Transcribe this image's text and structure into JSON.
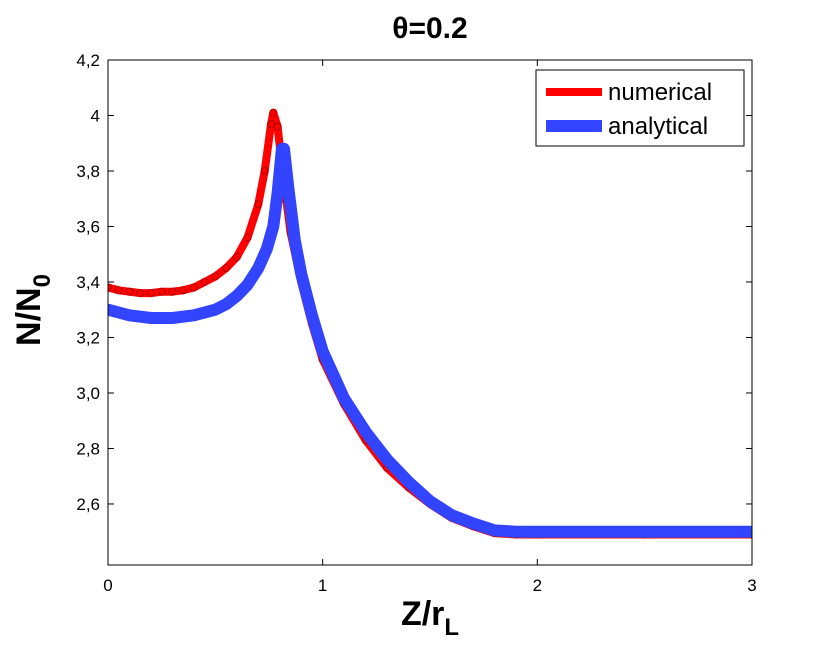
{
  "chart_data": {
    "type": "line",
    "title": "θ=0.2",
    "xlabel": {
      "main": "Z/r",
      "sub": "L"
    },
    "ylabel": {
      "main": "N/N",
      "sub": "0"
    },
    "xlim": [
      0,
      3
    ],
    "ylim": [
      2.38,
      4.2
    ],
    "x_ticks": [
      0,
      1,
      2,
      3
    ],
    "x_tick_labels": [
      "0",
      "1",
      "2",
      "3"
    ],
    "y_ticks": [
      2.6,
      2.8,
      3.0,
      3.2,
      3.4,
      3.6,
      3.8,
      4.0,
      4.2
    ],
    "y_tick_labels": [
      "2,6",
      "2,8",
      "3,0",
      "3,2",
      "3,4",
      "3,6",
      "3,8",
      "4",
      "4,2"
    ],
    "grid": false,
    "legend_position": "top-right",
    "series": [
      {
        "name": "numerical",
        "color": "#ff0000",
        "points": [
          [
            0.0,
            3.38
          ],
          [
            0.05,
            3.37
          ],
          [
            0.1,
            3.365
          ],
          [
            0.15,
            3.36
          ],
          [
            0.2,
            3.36
          ],
          [
            0.25,
            3.365
          ],
          [
            0.3,
            3.365
          ],
          [
            0.35,
            3.37
          ],
          [
            0.4,
            3.38
          ],
          [
            0.45,
            3.4
          ],
          [
            0.5,
            3.42
          ],
          [
            0.55,
            3.45
          ],
          [
            0.6,
            3.49
          ],
          [
            0.65,
            3.56
          ],
          [
            0.7,
            3.68
          ],
          [
            0.73,
            3.8
          ],
          [
            0.76,
            3.97
          ],
          [
            0.77,
            4.01
          ],
          [
            0.79,
            3.96
          ],
          [
            0.81,
            3.82
          ],
          [
            0.83,
            3.7
          ],
          [
            0.85,
            3.58
          ],
          [
            0.9,
            3.4
          ],
          [
            0.95,
            3.25
          ],
          [
            1.0,
            3.12
          ],
          [
            1.1,
            2.96
          ],
          [
            1.2,
            2.83
          ],
          [
            1.3,
            2.73
          ],
          [
            1.4,
            2.66
          ],
          [
            1.5,
            2.6
          ],
          [
            1.6,
            2.55
          ],
          [
            1.7,
            2.52
          ],
          [
            1.8,
            2.495
          ],
          [
            1.9,
            2.49
          ],
          [
            2.0,
            2.49
          ],
          [
            2.5,
            2.49
          ],
          [
            3.0,
            2.49
          ]
        ]
      },
      {
        "name": "analytical",
        "color": "#3344ff",
        "points": [
          [
            0.0,
            3.3
          ],
          [
            0.05,
            3.29
          ],
          [
            0.1,
            3.28
          ],
          [
            0.2,
            3.27
          ],
          [
            0.3,
            3.27
          ],
          [
            0.4,
            3.28
          ],
          [
            0.5,
            3.3
          ],
          [
            0.55,
            3.32
          ],
          [
            0.6,
            3.35
          ],
          [
            0.65,
            3.39
          ],
          [
            0.7,
            3.45
          ],
          [
            0.74,
            3.52
          ],
          [
            0.77,
            3.6
          ],
          [
            0.79,
            3.72
          ],
          [
            0.81,
            3.88
          ],
          [
            0.82,
            3.88
          ],
          [
            0.84,
            3.74
          ],
          [
            0.87,
            3.55
          ],
          [
            0.9,
            3.43
          ],
          [
            0.95,
            3.28
          ],
          [
            1.0,
            3.15
          ],
          [
            1.1,
            2.98
          ],
          [
            1.2,
            2.86
          ],
          [
            1.3,
            2.76
          ],
          [
            1.4,
            2.68
          ],
          [
            1.5,
            2.61
          ],
          [
            1.6,
            2.56
          ],
          [
            1.7,
            2.53
          ],
          [
            1.8,
            2.505
          ],
          [
            1.9,
            2.5
          ],
          [
            2.0,
            2.5
          ],
          [
            2.5,
            2.5
          ],
          [
            3.0,
            2.5
          ]
        ]
      }
    ]
  }
}
